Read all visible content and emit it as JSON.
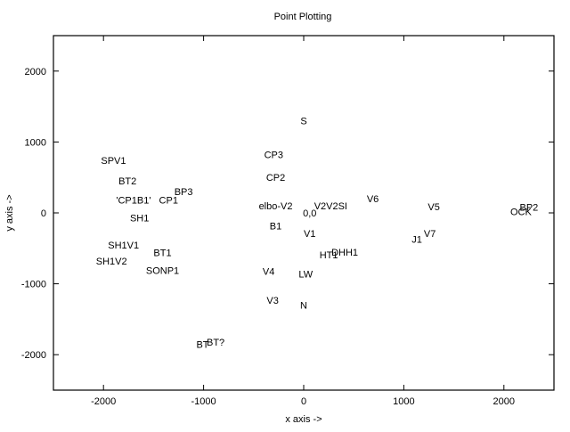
{
  "chart_data": {
    "type": "scatter",
    "title": "Point Plotting",
    "xlabel": "x axis ->",
    "ylabel": "y axis ->",
    "xlim": [
      -2500,
      2500
    ],
    "ylim": [
      -2500,
      2500
    ],
    "grid": false,
    "x_ticks": [
      -2000,
      -1000,
      0,
      1000,
      2000
    ],
    "y_ticks": [
      -2000,
      -1000,
      0,
      1000,
      2000
    ],
    "x_tick_labels": [
      "-2000",
      "-1000",
      "0",
      "1000",
      "2000"
    ],
    "y_tick_labels": [
      "-2000",
      "-1000",
      "0",
      "1000",
      "2000"
    ],
    "points": [
      {
        "label": "S",
        "x": 0,
        "y": 1300
      },
      {
        "label": "CP3",
        "x": -300,
        "y": 820
      },
      {
        "label": "CP2",
        "x": -280,
        "y": 500
      },
      {
        "label": "elbo-V2",
        "x": -280,
        "y": 100
      },
      {
        "label": "0,0",
        "x": 60,
        "y": 0
      },
      {
        "label": "B1",
        "x": -280,
        "y": -180
      },
      {
        "label": "V1",
        "x": 60,
        "y": -290
      },
      {
        "label": "V2V2SI",
        "x": 270,
        "y": 100
      },
      {
        "label": "V6",
        "x": 690,
        "y": 200
      },
      {
        "label": "V5",
        "x": 1300,
        "y": 90
      },
      {
        "label": "V7",
        "x": 1260,
        "y": -290
      },
      {
        "label": "J1",
        "x": 1130,
        "y": -370
      },
      {
        "label": "DHH1",
        "x": 410,
        "y": -550
      },
      {
        "label": "HT1",
        "x": 250,
        "y": -590
      },
      {
        "label": "BP2",
        "x": 2250,
        "y": 80
      },
      {
        "label": "OCK",
        "x": 2170,
        "y": 20
      },
      {
        "label": "SPV1",
        "x": -1900,
        "y": 740
      },
      {
        "label": "BT2",
        "x": -1760,
        "y": 450
      },
      {
        "label": "'CP1B1'",
        "x": -1700,
        "y": 180
      },
      {
        "label": "BP3",
        "x": -1200,
        "y": 300
      },
      {
        "label": "CP1",
        "x": -1350,
        "y": 180
      },
      {
        "label": "SH1",
        "x": -1640,
        "y": -70
      },
      {
        "label": "SH1V1",
        "x": -1800,
        "y": -450
      },
      {
        "label": "BT1",
        "x": -1410,
        "y": -560
      },
      {
        "label": "SH1V2",
        "x": -1920,
        "y": -680
      },
      {
        "label": "SONP1",
        "x": -1410,
        "y": -810
      },
      {
        "label": "V4",
        "x": -350,
        "y": -820
      },
      {
        "label": "LW",
        "x": 20,
        "y": -860
      },
      {
        "label": "V3",
        "x": -310,
        "y": -1230
      },
      {
        "label": "N",
        "x": 0,
        "y": -1300
      },
      {
        "label": "BT?",
        "x": -880,
        "y": -1820
      },
      {
        "label": "BT",
        "x": -1010,
        "y": -1850
      }
    ]
  }
}
